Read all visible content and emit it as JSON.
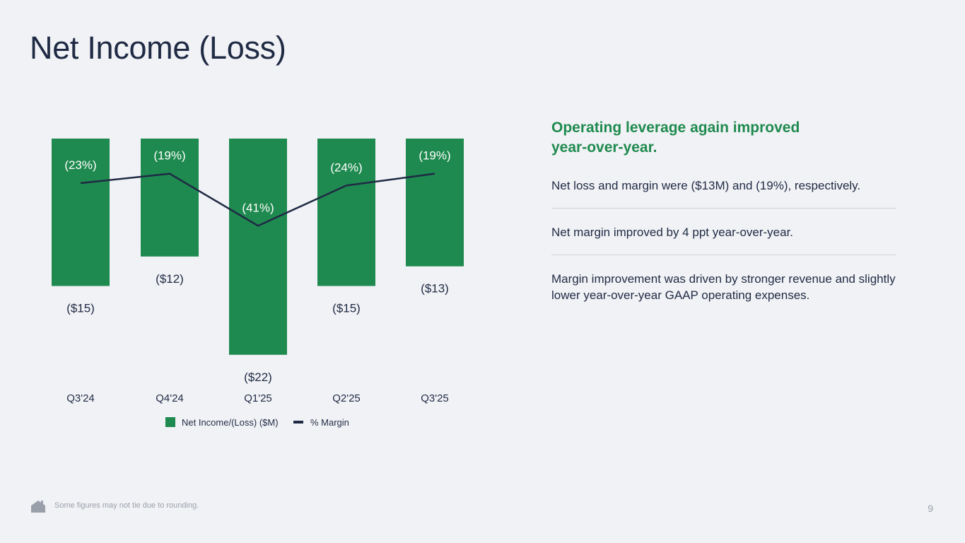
{
  "page": {
    "title": "Net Income (Loss)",
    "footnote": "Some figures may not tie due to rounding.",
    "page_number": "9"
  },
  "side": {
    "headline": "Operating leverage again improved year-over-year.",
    "points": [
      "Net loss and margin were ($13M) and (19%), respectively.",
      "Net margin improved by 4 ppt year-over-year.",
      "Margin improvement was driven by stronger revenue and slightly lower year-over-year GAAP operating expenses."
    ]
  },
  "colors": {
    "bar": "#1f8a4f",
    "line": "#1f2a44",
    "headline": "#1f8a4f",
    "text": "#1f2a44"
  },
  "icons": {
    "footer": "house-icon"
  },
  "chart_data": {
    "type": "bar",
    "categories": [
      "Q3'24",
      "Q4'24",
      "Q1'25",
      "Q2'25",
      "Q3'25"
    ],
    "series": [
      {
        "name": "Net Income/(Loss) ($M)",
        "type": "bar",
        "values": [
          -15,
          -12,
          -22,
          -15,
          -13
        ],
        "labels": [
          "($15)",
          "($12)",
          "($22)",
          "($15)",
          "($13)"
        ]
      },
      {
        "name": "% Margin",
        "type": "line",
        "values": [
          -23,
          -19,
          -41,
          -24,
          -19
        ],
        "labels": [
          "(23%)",
          "(19%)",
          "(41%)",
          "(24%)",
          "(19%)"
        ]
      }
    ],
    "legend": [
      "Net Income/(Loss) ($M)",
      "% Margin"
    ],
    "legend_position": "bottom",
    "grid": false
  }
}
